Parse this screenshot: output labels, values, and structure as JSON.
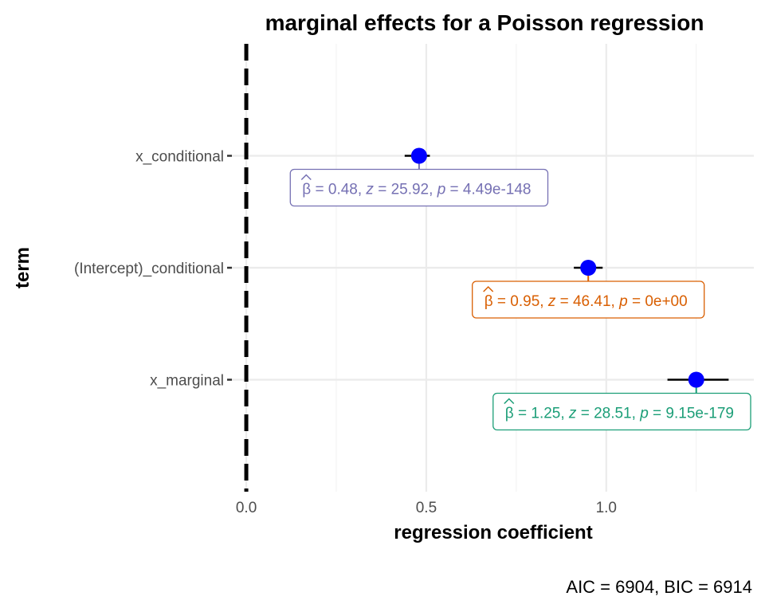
{
  "chart_data": {
    "type": "scatter",
    "title": "marginal effects for a Poisson regression",
    "xlabel": "regression coefficient",
    "ylabel": "term",
    "caption": "AIC = 6904, BIC = 6914",
    "xlim": [
      -0.04,
      1.41
    ],
    "x_ticks": [
      0.0,
      0.5,
      1.0
    ],
    "x_tick_labels": [
      "0.0",
      "0.5",
      "1.0"
    ],
    "x_minor_ticks": [
      0.25,
      0.75,
      1.25
    ],
    "reference_line_x": 0,
    "grid": true,
    "legend": "none",
    "terms": [
      {
        "term": "x_conditional",
        "estimate": 0.48,
        "ci_low": 0.44,
        "ci_high": 0.51,
        "color": "#7570b3",
        "label": {
          "beta": "0.48",
          "z": "25.92",
          "p": "4.49e-148"
        }
      },
      {
        "term": "(Intercept)_conditional",
        "estimate": 0.95,
        "ci_low": 0.91,
        "ci_high": 0.99,
        "color": "#d95f02",
        "label": {
          "beta": "0.95",
          "z": "46.41",
          "p": "0e+00"
        }
      },
      {
        "term": "x_marginal",
        "estimate": 1.25,
        "ci_low": 1.17,
        "ci_high": 1.34,
        "color": "#1b9e77",
        "label": {
          "beta": "1.25",
          "z": "28.51",
          "p": "9.15e-179"
        }
      }
    ],
    "point_color": "#0000ff"
  }
}
